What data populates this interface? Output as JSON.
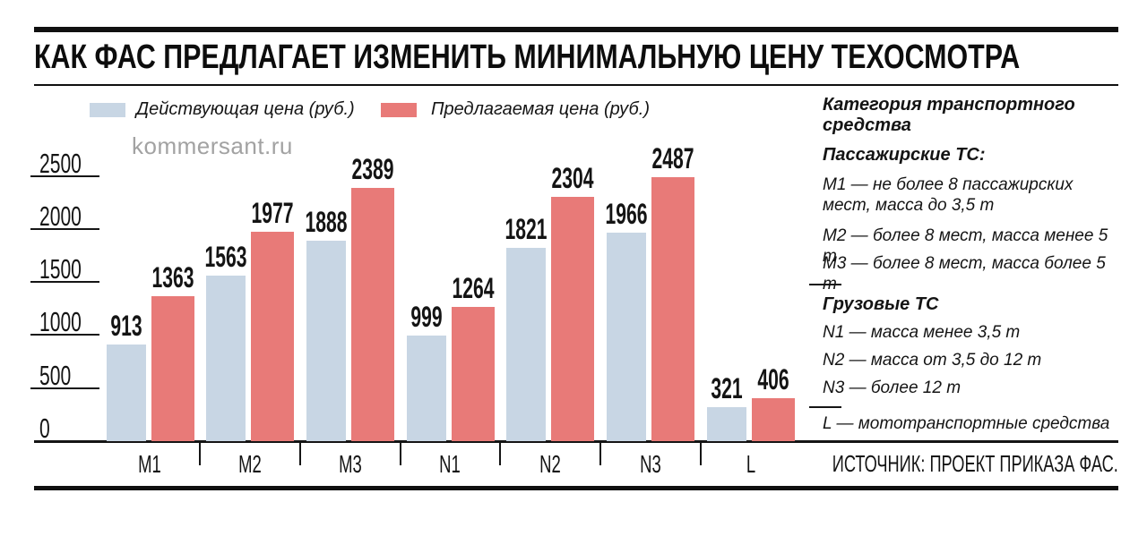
{
  "title": "КАК ФАС ПРЕДЛАГАЕТ ИЗМЕНИТЬ МИНИМАЛЬНУЮ ЦЕНУ ТЕХОСМОТРА",
  "watermark": "kommersant.ru",
  "source": "ИСТОЧНИК: ПРОЕКТ ПРИКАЗА ФАС.",
  "colors": {
    "current_price": "#c8d6e4",
    "proposed_price": "#e87a78",
    "rule": "#101010",
    "watermark_gray": "#a2a2a2"
  },
  "chart_data": {
    "type": "bar",
    "title": "КАК ФАС ПРЕДЛАГАЕТ ИЗМЕНИТЬ МИНИМАЛЬНУЮ ЦЕНУ ТЕХОСМОТРА",
    "categories": [
      "M1",
      "M2",
      "M3",
      "N1",
      "N2",
      "N3",
      "L"
    ],
    "series": [
      {
        "name": "Действующая цена (руб.)",
        "color": "#c8d6e4",
        "values": [
          913,
          1563,
          1888,
          999,
          1821,
          1966,
          321
        ]
      },
      {
        "name": "Предлагаемая цена (руб.)",
        "color": "#e87a78",
        "values": [
          1363,
          1977,
          2389,
          1264,
          2304,
          2487,
          406
        ]
      }
    ],
    "xlabel": "",
    "ylabel": "",
    "ylim": [
      0,
      2500
    ],
    "yticks": [
      0,
      500,
      1000,
      1500,
      2000,
      2500
    ],
    "grid": false,
    "legend_position": "top",
    "value_labels": true
  },
  "legend": {
    "items": [
      {
        "label": "Действующая цена (руб.)",
        "color": "#c8d6e4"
      },
      {
        "label": "Предлагаемая цена (руб.)",
        "color": "#e87a78"
      }
    ]
  },
  "sidebar": {
    "entries": [
      {
        "text": "Категория транспортного средства",
        "bold": true,
        "sep": false
      },
      {
        "text": "Пассажирские ТС:",
        "bold": true,
        "sep": false
      },
      {
        "text": "M1 — не более 8 пассажирских мест, масса до 3,5 т",
        "bold": false,
        "sep": false
      },
      {
        "text": "M2 — более 8 мест, масса менее 5 т",
        "bold": false,
        "sep": false
      },
      {
        "text": "M3 — более 8 мест, масса более 5 т",
        "bold": false,
        "sep": false
      },
      {
        "text": "Грузовые ТС",
        "bold": true,
        "sep": true
      },
      {
        "text": "N1 — масса менее 3,5 т",
        "bold": false,
        "sep": false
      },
      {
        "text": "N2 — масса от 3,5 до 12 т",
        "bold": false,
        "sep": false
      },
      {
        "text": "N3 — более 12 т",
        "bold": false,
        "sep": false
      },
      {
        "text": "L — мототранспортные средства",
        "bold": false,
        "sep": true
      }
    ]
  }
}
